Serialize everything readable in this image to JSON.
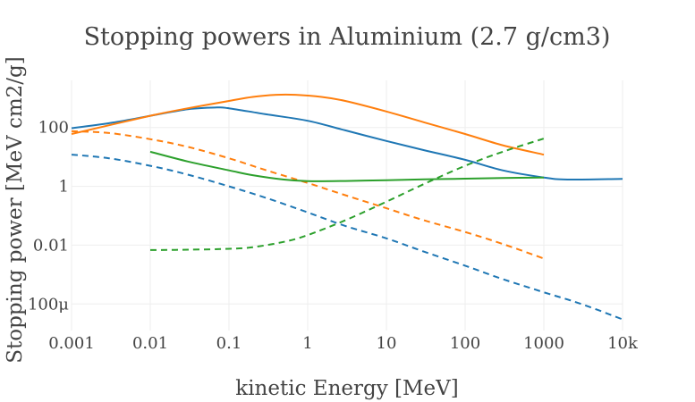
{
  "chart_data": {
    "type": "line",
    "title": "Stopping powers in Aluminium (2.7 g/cm3)",
    "xlabel": "kinetic Energy [MeV]",
    "ylabel": "Stopping power [MeV cm2/g]",
    "x_scale": "log",
    "y_scale": "log",
    "xlim": [
      0.001,
      10000
    ],
    "ylim": [
      1.25e-05,
      4000
    ],
    "x_ticks": [
      {
        "value": 0.001,
        "label": "0.001"
      },
      {
        "value": 0.01,
        "label": "0.01"
      },
      {
        "value": 0.1,
        "label": "0.1"
      },
      {
        "value": 1,
        "label": "1"
      },
      {
        "value": 10,
        "label": "10"
      },
      {
        "value": 100,
        "label": "100"
      },
      {
        "value": 1000,
        "label": "1000"
      },
      {
        "value": 10000,
        "label": "10k"
      }
    ],
    "y_ticks": [
      {
        "value": 0.0001,
        "label": "100μ"
      },
      {
        "value": 0.01,
        "label": "0.01"
      },
      {
        "value": 1,
        "label": "1"
      },
      {
        "value": 100,
        "label": "100"
      }
    ],
    "grid": true,
    "legend": "none",
    "series": [
      {
        "color": "#1f77b4",
        "dash": "solid",
        "x": [
          0.001,
          0.003,
          0.01,
          0.03,
          0.07,
          0.1,
          0.3,
          1,
          3,
          10,
          30,
          100,
          300,
          1000,
          2000,
          10000
        ],
        "y": [
          95,
          140,
          250,
          420,
          480,
          450,
          280,
          170,
          80,
          35,
          17,
          8,
          3.5,
          2.0,
          1.7,
          1.8
        ]
      },
      {
        "color": "#1f77b4",
        "dash": "dash",
        "x": [
          0.001,
          0.003,
          0.01,
          0.03,
          0.1,
          0.3,
          1,
          3,
          10,
          30,
          100,
          300,
          1000,
          3000,
          10000
        ],
        "y": [
          12,
          9,
          5,
          2.5,
          1.0,
          0.4,
          0.13,
          0.045,
          0.017,
          0.006,
          0.002,
          0.0007,
          0.00025,
          0.0001,
          3e-05
        ]
      },
      {
        "color": "#ff7f0e",
        "dash": "solid",
        "x": [
          0.001,
          0.01,
          0.03,
          0.1,
          0.2,
          0.4,
          0.7,
          1.5,
          3,
          10,
          30,
          100,
          300,
          1000
        ],
        "y": [
          60,
          250,
          450,
          800,
          1100,
          1300,
          1300,
          1100,
          800,
          350,
          150,
          60,
          25,
          12
        ]
      },
      {
        "color": "#ff7f0e",
        "dash": "dash",
        "x": [
          0.001,
          0.003,
          0.01,
          0.03,
          0.1,
          0.3,
          1,
          3,
          10,
          30,
          100,
          300,
          1000
        ],
        "y": [
          75,
          65,
          40,
          22,
          9,
          3.5,
          1.3,
          0.5,
          0.18,
          0.07,
          0.028,
          0.011,
          0.0035
        ]
      },
      {
        "color": "#2ca02c",
        "dash": "solid",
        "x": [
          0.01,
          0.03,
          0.1,
          0.2,
          0.5,
          1,
          3,
          10,
          30,
          100,
          300,
          1000
        ],
        "y": [
          15,
          7,
          3.5,
          2.4,
          1.7,
          1.5,
          1.52,
          1.62,
          1.72,
          1.82,
          1.92,
          2.0
        ]
      },
      {
        "color": "#2ca02c",
        "dash": "dash",
        "x": [
          0.01,
          0.03,
          0.1,
          0.2,
          0.5,
          1,
          3,
          10,
          30,
          100,
          300,
          1000
        ],
        "y": [
          0.0068,
          0.007,
          0.0075,
          0.0085,
          0.013,
          0.022,
          0.07,
          0.3,
          1.2,
          5,
          15,
          42
        ]
      }
    ]
  }
}
